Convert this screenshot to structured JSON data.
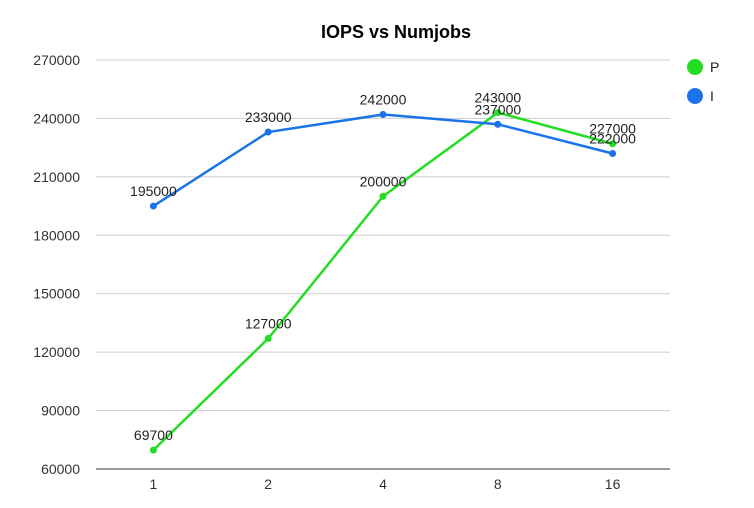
{
  "chart_data": {
    "type": "line",
    "title": "IOPS vs Numjobs",
    "xlabel": "",
    "ylabel": "",
    "categories": [
      "1",
      "2",
      "4",
      "8",
      "16"
    ],
    "ylim": [
      60000,
      270000
    ],
    "yticks": [
      60000,
      90000,
      120000,
      150000,
      180000,
      210000,
      240000,
      270000
    ],
    "grid": true,
    "legend_position": "right",
    "series": [
      {
        "name": "P",
        "color": "#22dd22",
        "values": [
          69700,
          127000,
          200000,
          243000,
          227000
        ]
      },
      {
        "name": "I",
        "color": "#1a73e8",
        "values": [
          195000,
          233000,
          242000,
          237000,
          222000
        ]
      }
    ]
  }
}
